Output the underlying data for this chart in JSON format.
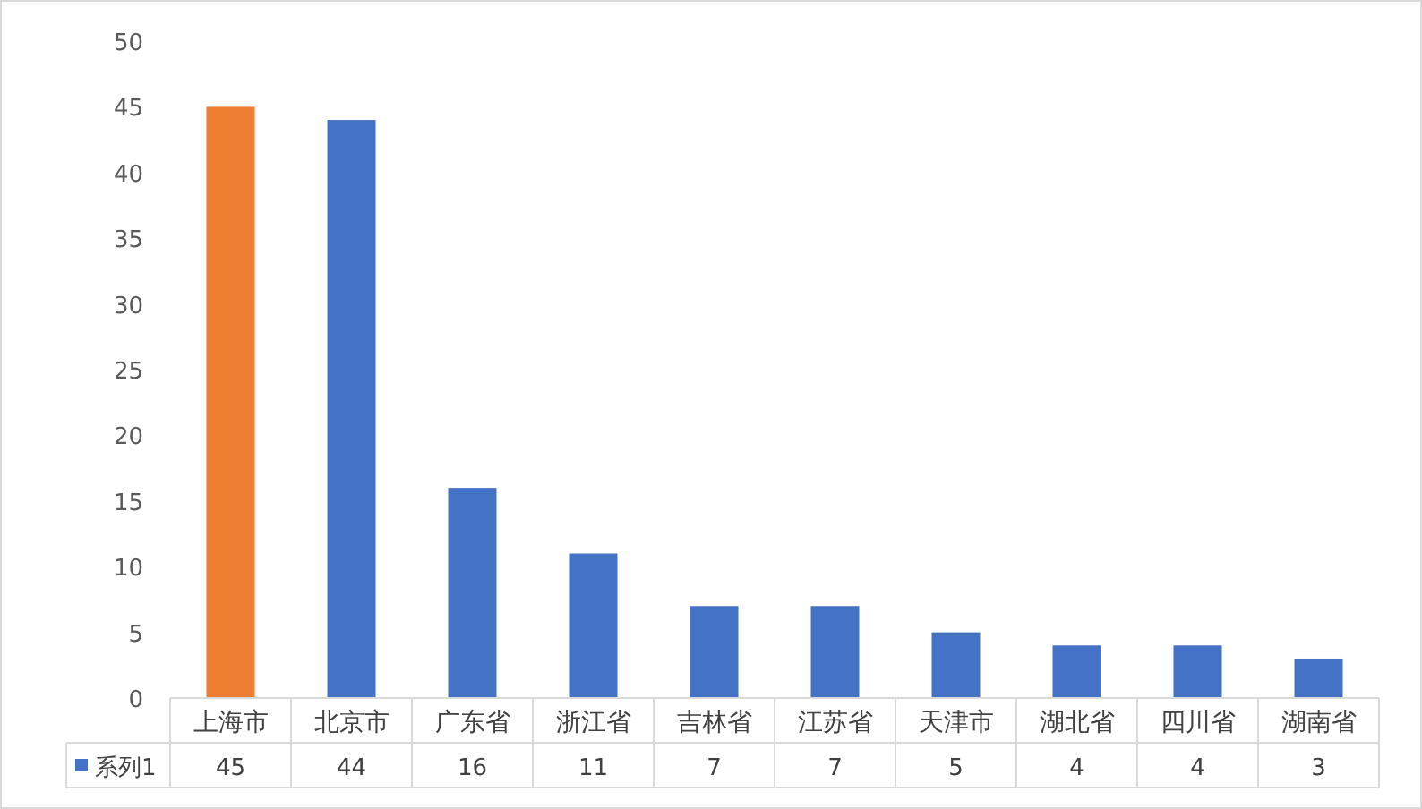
{
  "chart_data": {
    "type": "bar",
    "categories": [
      "上海市",
      "北京市",
      "广东省",
      "浙江省",
      "吉林省",
      "江苏省",
      "天津市",
      "湖北省",
      "四川省",
      "湖南省"
    ],
    "series": [
      {
        "name": "系列1",
        "color": "#4472c4",
        "colors": [
          "#ed7d31",
          "#4472c4",
          "#4472c4",
          "#4472c4",
          "#4472c4",
          "#4472c4",
          "#4472c4",
          "#4472c4",
          "#4472c4",
          "#4472c4"
        ],
        "values": [
          45,
          44,
          16,
          11,
          7,
          7,
          5,
          4,
          4,
          3
        ]
      }
    ],
    "ylim": [
      0,
      50
    ],
    "yticks": [
      0,
      5,
      10,
      15,
      20,
      25,
      30,
      35,
      40,
      45,
      50
    ],
    "data_labels": true
  }
}
